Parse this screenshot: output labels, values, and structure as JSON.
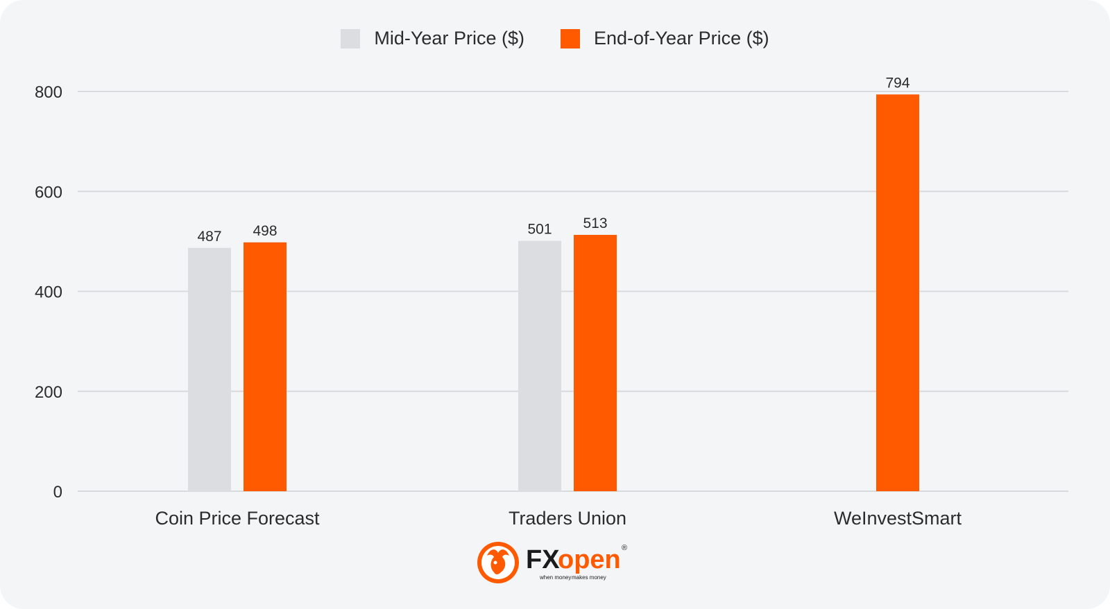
{
  "legend": {
    "mid_label": "Mid-Year Price ($)",
    "end_label": "End-of-Year Price ($)"
  },
  "colors": {
    "mid": "#dcdde0",
    "end": "#ff5a00",
    "grid": "#d9dadd",
    "background": "#f4f5f7"
  },
  "brand": {
    "name_fx": "FX",
    "name_open": "open",
    "registered": "®",
    "tagline_1": "when money",
    "tagline_2": "makes money"
  },
  "chart_data": {
    "type": "bar",
    "categories": [
      "Coin Price Forecast",
      "Traders Union",
      "WeInvestSmart"
    ],
    "series": [
      {
        "name": "Mid-Year Price ($)",
        "values": [
          487,
          501,
          null
        ]
      },
      {
        "name": "End-of-Year Price ($)",
        "values": [
          498,
          513,
          794
        ]
      }
    ],
    "yticks": [
      0,
      200,
      400,
      600,
      800
    ],
    "ylim": [
      0,
      800
    ],
    "grid": true,
    "legend_position": "top-center",
    "title": "",
    "xlabel": "",
    "ylabel": ""
  }
}
